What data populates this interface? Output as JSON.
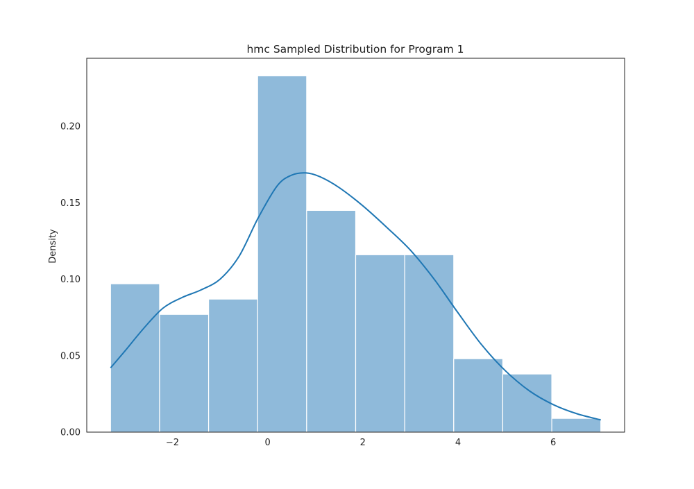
{
  "chart_data": {
    "type": "bar",
    "title": "hmc Sampled Distribution for Program 1",
    "xlabel": "",
    "ylabel": "Density",
    "xlim": [
      -3.8,
      7.5
    ],
    "ylim": [
      0.0,
      0.2445
    ],
    "grid": false,
    "xticks": [
      -2,
      0,
      2,
      4,
      6
    ],
    "xtick_labels": [
      "−2",
      "0",
      "2",
      "4",
      "6"
    ],
    "yticks": [
      0.0,
      0.05,
      0.1,
      0.15,
      0.2
    ],
    "ytick_labels": [
      "0.00",
      "0.05",
      "0.10",
      "0.15",
      "0.20"
    ],
    "bins": [
      {
        "x0": -3.3,
        "x1": -2.27,
        "density": 0.097
      },
      {
        "x0": -2.27,
        "x1": -1.24,
        "density": 0.077
      },
      {
        "x0": -1.24,
        "x1": -0.21,
        "density": 0.087
      },
      {
        "x0": -0.21,
        "x1": 0.82,
        "density": 0.233
      },
      {
        "x0": 0.82,
        "x1": 1.85,
        "density": 0.145
      },
      {
        "x0": 1.85,
        "x1": 2.88,
        "density": 0.116
      },
      {
        "x0": 2.88,
        "x1": 3.91,
        "density": 0.116
      },
      {
        "x0": 3.91,
        "x1": 4.94,
        "density": 0.048
      },
      {
        "x0": 4.94,
        "x1": 5.97,
        "density": 0.038
      },
      {
        "x0": 5.97,
        "x1": 7.0,
        "density": 0.009
      }
    ],
    "kde": {
      "x": [
        -3.3,
        -3.0,
        -2.6,
        -2.2,
        -1.8,
        -1.4,
        -1.0,
        -0.6,
        -0.2,
        0.2,
        0.5,
        0.8,
        1.1,
        1.5,
        2.0,
        2.5,
        3.0,
        3.5,
        4.0,
        4.5,
        5.0,
        5.5,
        6.0,
        6.5,
        7.0
      ],
      "y": [
        0.042,
        0.053,
        0.068,
        0.081,
        0.088,
        0.093,
        0.1,
        0.115,
        0.14,
        0.161,
        0.168,
        0.1695,
        0.167,
        0.16,
        0.148,
        0.134,
        0.119,
        0.1,
        0.078,
        0.057,
        0.04,
        0.027,
        0.018,
        0.012,
        0.008
      ]
    },
    "colors": {
      "bar_fill": "#8fbada",
      "bar_edge": "#ffffff",
      "kde_line": "#1f77b4",
      "axes": "#222222"
    }
  }
}
